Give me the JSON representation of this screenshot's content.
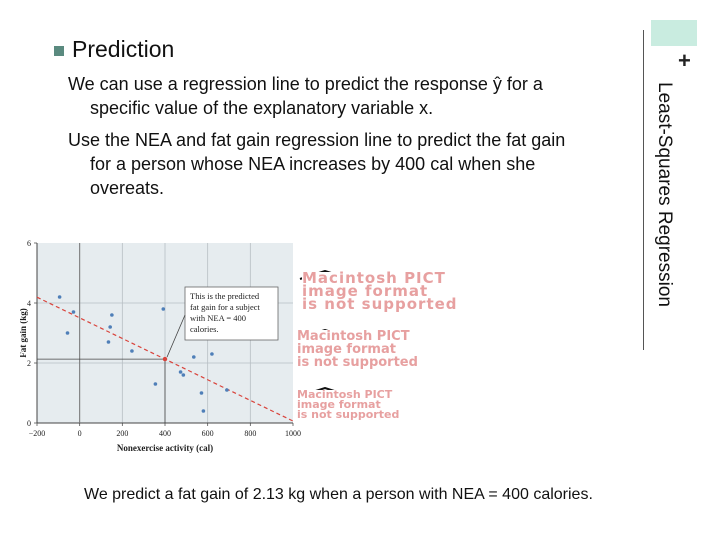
{
  "slide": {
    "section_label": "Least-Squares Regression",
    "corner_symbol": "+",
    "heading": "Prediction",
    "para1_line1": "We can use a regression line to predict the response ŷ for a",
    "para1_line2": "specific value of the explanatory variable x.",
    "para2_line1": "Use the NEA and fat gain regression line to predict the fat gain",
    "para2_line2": "for a person whose NEA increases by 400 cal when she",
    "para2_line3": "overeats.",
    "footer": "We predict a fat gain of 2.13 kg when a person with NEA = 400 calories."
  },
  "broken_images": [
    {
      "line1": "Macintosh PICT",
      "line2": "image format",
      "line3": "is not supported"
    },
    {
      "line1": "Macintosh PICT",
      "line2": "image format",
      "line3": "is not supported"
    },
    {
      "line1": "Macintosh PICT",
      "line2": "image format",
      "line3": "is not supported"
    }
  ],
  "chart_data": {
    "type": "scatter",
    "xlabel": "Nonexercise activity (cal)",
    "ylabel": "Fat gain (kg)",
    "xlim": [
      -200,
      1000
    ],
    "ylim": [
      0,
      6
    ],
    "x_ticks": [
      "−200",
      "0",
      "200",
      "400",
      "600",
      "800",
      "1000"
    ],
    "y_ticks": [
      "0",
      "2",
      "4",
      "6"
    ],
    "points": [
      {
        "x": -94,
        "y": 4.2
      },
      {
        "x": -57,
        "y": 3.0
      },
      {
        "x": -29,
        "y": 3.7
      },
      {
        "x": 135,
        "y": 2.7
      },
      {
        "x": 143,
        "y": 3.2
      },
      {
        "x": 151,
        "y": 3.6
      },
      {
        "x": 245,
        "y": 2.4
      },
      {
        "x": 355,
        "y": 1.3
      },
      {
        "x": 392,
        "y": 3.8
      },
      {
        "x": 473,
        "y": 1.7
      },
      {
        "x": 486,
        "y": 1.6
      },
      {
        "x": 535,
        "y": 2.2
      },
      {
        "x": 571,
        "y": 1.0
      },
      {
        "x": 580,
        "y": 0.4
      },
      {
        "x": 620,
        "y": 2.3
      },
      {
        "x": 690,
        "y": 1.1
      }
    ],
    "regression": {
      "intercept": 3.505,
      "slope": -0.00344
    },
    "prediction": {
      "x": 400,
      "y": 2.13
    },
    "annotation_lines": [
      "This is the predicted",
      "fat gain for a subject",
      "with NEA = 400",
      "calories."
    ]
  }
}
